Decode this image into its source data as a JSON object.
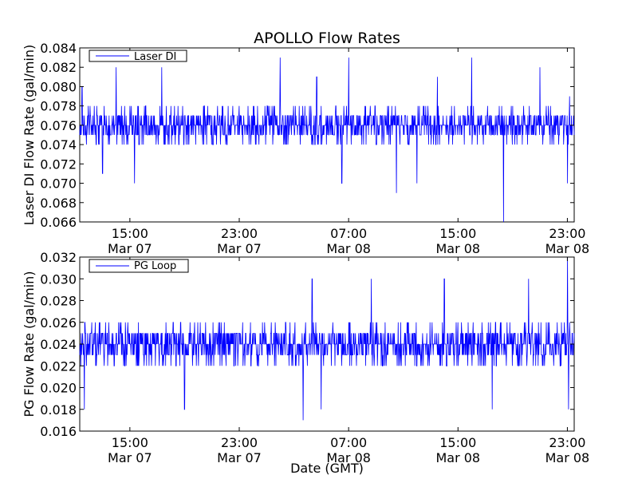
{
  "title": "APOLLO Flow Rates",
  "xlabel": "Date (GMT)",
  "line_color": "#0000ff",
  "x_ticks": [
    {
      "time": "15:00",
      "date": "Mar 07"
    },
    {
      "time": "23:00",
      "date": "Mar 07"
    },
    {
      "time": "07:00",
      "date": "Mar 08"
    },
    {
      "time": "15:00",
      "date": "Mar 08"
    },
    {
      "time": "23:00",
      "date": "Mar 08"
    }
  ],
  "chart_data": [
    {
      "type": "line",
      "title": "APOLLO Flow Rates",
      "ylabel": "Laser DI Flow Rate (gal/min)",
      "legend_location": "upper-left",
      "ylim": [
        0.066,
        0.084
      ],
      "y_ticks": [
        "0.066",
        "0.068",
        "0.070",
        "0.072",
        "0.074",
        "0.076",
        "0.078",
        "0.080",
        "0.082",
        "0.084"
      ],
      "x_range": [
        "2011-03-07 11:20",
        "2011-03-08 23:30"
      ],
      "series": [
        {
          "name": "Laser DI",
          "baseline": 0.076,
          "typical_range": [
            0.074,
            0.078
          ],
          "spikes": [
            {
              "t": "2011-03-07 11:30",
              "value": 0.08
            },
            {
              "t": "2011-03-07 13:00",
              "value": 0.071
            },
            {
              "t": "2011-03-07 14:00",
              "value": 0.082
            },
            {
              "t": "2011-03-07 15:20",
              "value": 0.07
            },
            {
              "t": "2011-03-07 17:20",
              "value": 0.082
            },
            {
              "t": "2011-03-08 02:00",
              "value": 0.083
            },
            {
              "t": "2011-03-08 04:40",
              "value": 0.081
            },
            {
              "t": "2011-03-08 06:30",
              "value": 0.07
            },
            {
              "t": "2011-03-08 07:00",
              "value": 0.083
            },
            {
              "t": "2011-03-08 10:30",
              "value": 0.069
            },
            {
              "t": "2011-03-08 12:00",
              "value": 0.07
            },
            {
              "t": "2011-03-08 13:30",
              "value": 0.081
            },
            {
              "t": "2011-03-08 16:00",
              "value": 0.083
            },
            {
              "t": "2011-03-08 18:20",
              "value": 0.066
            },
            {
              "t": "2011-03-08 21:00",
              "value": 0.082
            },
            {
              "t": "2011-03-08 23:00",
              "value": 0.07
            },
            {
              "t": "2011-03-08 23:10",
              "value": 0.079
            }
          ]
        }
      ]
    },
    {
      "type": "line",
      "ylabel": "PG Flow Rate (gal/min)",
      "xlabel": "Date (GMT)",
      "legend_location": "upper-left",
      "ylim": [
        0.016,
        0.032
      ],
      "y_ticks": [
        "0.016",
        "0.018",
        "0.020",
        "0.022",
        "0.024",
        "0.026",
        "0.028",
        "0.030",
        "0.032"
      ],
      "x_range": [
        "2011-03-07 11:20",
        "2011-03-08 23:30"
      ],
      "series": [
        {
          "name": "PG Loop",
          "baseline": 0.024,
          "typical_range": [
            0.022,
            0.026
          ],
          "spikes": [
            {
              "t": "2011-03-07 11:40",
              "value": 0.018
            },
            {
              "t": "2011-03-07 19:00",
              "value": 0.018
            },
            {
              "t": "2011-03-08 03:40",
              "value": 0.017
            },
            {
              "t": "2011-03-08 04:20",
              "value": 0.03
            },
            {
              "t": "2011-03-08 05:00",
              "value": 0.018
            },
            {
              "t": "2011-03-08 08:40",
              "value": 0.03
            },
            {
              "t": "2011-03-08 14:00",
              "value": 0.03
            },
            {
              "t": "2011-03-08 17:30",
              "value": 0.018
            },
            {
              "t": "2011-03-08 20:10",
              "value": 0.03
            },
            {
              "t": "2011-03-08 23:00",
              "value": 0.032
            },
            {
              "t": "2011-03-08 23:05",
              "value": 0.018
            }
          ]
        }
      ]
    }
  ]
}
